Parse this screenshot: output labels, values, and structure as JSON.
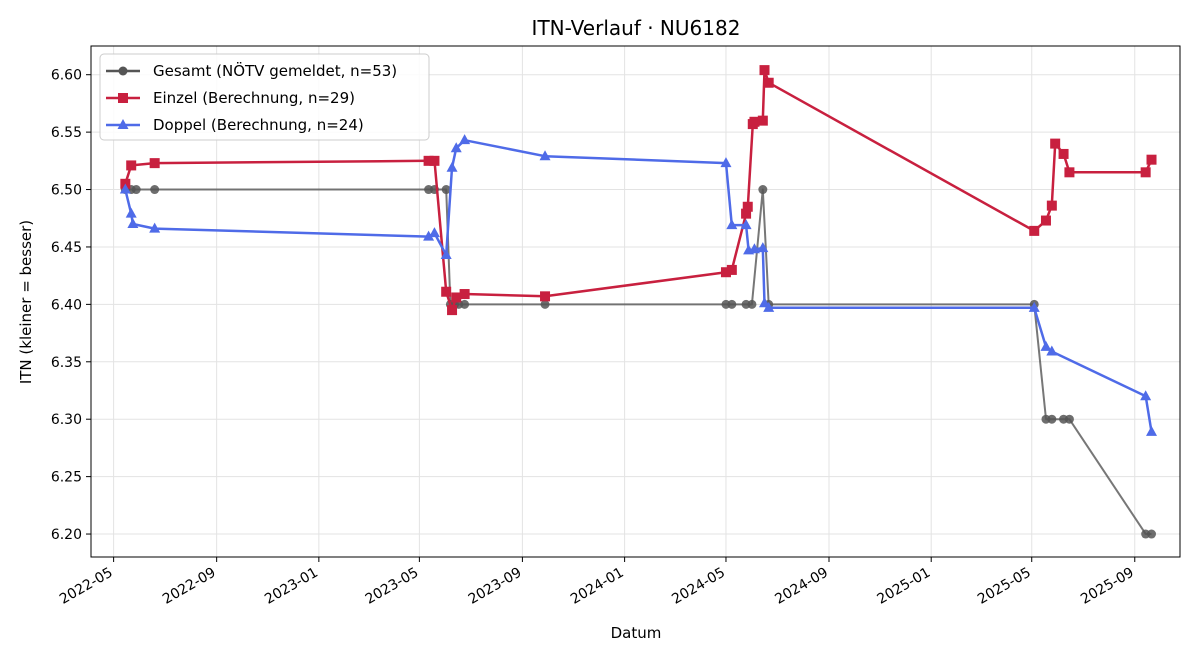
{
  "chart_data": {
    "type": "line",
    "title": "ITN-Verlauf · NU6182",
    "xlabel": "Datum",
    "ylabel": "ITN  (kleiner = besser)",
    "grid": true,
    "legend_position": "top-left",
    "xlim": [
      "2022-04-04",
      "2025-10-25"
    ],
    "ylim": [
      6.18,
      6.625
    ],
    "x_ticks": [
      "2022-05",
      "2022-09",
      "2023-01",
      "2023-05",
      "2023-09",
      "2024-01",
      "2024-05",
      "2024-09",
      "2025-01",
      "2025-05",
      "2025-09"
    ],
    "y_ticks": [
      "6.20",
      "6.25",
      "6.30",
      "6.35",
      "6.40",
      "6.45",
      "6.50",
      "6.55",
      "6.60"
    ],
    "series": [
      {
        "name": "Gesamt (NÖTV gemeldet, n=53)",
        "color": "#555555",
        "marker": "circle",
        "points": [
          [
            "2022-05-15",
            6.5
          ],
          [
            "2022-05-22",
            6.5
          ],
          [
            "2022-05-28",
            6.5
          ],
          [
            "2022-06-19",
            6.5
          ],
          [
            "2023-05-12",
            6.5
          ],
          [
            "2023-05-19",
            6.5
          ],
          [
            "2023-06-02",
            6.5
          ],
          [
            "2023-06-07",
            6.4
          ],
          [
            "2023-06-12",
            6.4
          ],
          [
            "2023-06-17",
            6.4
          ],
          [
            "2023-06-24",
            6.4
          ],
          [
            "2023-09-28",
            6.4
          ],
          [
            "2024-05-01",
            6.4
          ],
          [
            "2024-05-08",
            6.4
          ],
          [
            "2024-05-25",
            6.4
          ],
          [
            "2024-06-01",
            6.4
          ],
          [
            "2024-06-14",
            6.5
          ],
          [
            "2024-06-21",
            6.4
          ],
          [
            "2025-05-04",
            6.4
          ],
          [
            "2025-05-18",
            6.3
          ],
          [
            "2025-05-25",
            6.3
          ],
          [
            "2025-06-08",
            6.3
          ],
          [
            "2025-06-15",
            6.3
          ],
          [
            "2025-09-14",
            6.2
          ],
          [
            "2025-09-21",
            6.2
          ]
        ]
      },
      {
        "name": "Einzel (Berechnung, n=29)",
        "color": "#c8203f",
        "marker": "square",
        "points": [
          [
            "2022-05-15",
            6.505
          ],
          [
            "2022-05-22",
            6.521
          ],
          [
            "2022-06-19",
            6.523
          ],
          [
            "2023-05-12",
            6.525
          ],
          [
            "2023-05-19",
            6.525
          ],
          [
            "2023-06-02",
            6.411
          ],
          [
            "2023-06-09",
            6.395
          ],
          [
            "2023-06-14",
            6.406
          ],
          [
            "2023-06-24",
            6.409
          ],
          [
            "2023-09-28",
            6.407
          ],
          [
            "2024-05-01",
            6.428
          ],
          [
            "2024-05-08",
            6.43
          ],
          [
            "2024-05-25",
            6.479
          ],
          [
            "2024-05-27",
            6.485
          ],
          [
            "2024-06-02",
            6.557
          ],
          [
            "2024-06-04",
            6.559
          ],
          [
            "2024-06-14",
            6.56
          ],
          [
            "2024-06-16",
            6.604
          ],
          [
            "2024-06-21",
            6.593
          ],
          [
            "2025-05-04",
            6.464
          ],
          [
            "2025-05-18",
            6.473
          ],
          [
            "2025-05-25",
            6.486
          ],
          [
            "2025-05-29",
            6.54
          ],
          [
            "2025-06-08",
            6.531
          ],
          [
            "2025-06-15",
            6.515
          ],
          [
            "2025-09-14",
            6.515
          ],
          [
            "2025-09-21",
            6.526
          ]
        ]
      },
      {
        "name": "Doppel (Berechnung, n=24)",
        "color": "#4f6be8",
        "marker": "triangle",
        "points": [
          [
            "2022-05-15",
            6.5
          ],
          [
            "2022-05-22",
            6.479
          ],
          [
            "2022-05-24",
            6.47
          ],
          [
            "2022-06-19",
            6.466
          ],
          [
            "2023-05-12",
            6.459
          ],
          [
            "2023-05-19",
            6.462
          ],
          [
            "2023-06-02",
            6.443
          ],
          [
            "2023-06-09",
            6.519
          ],
          [
            "2023-06-14",
            6.536
          ],
          [
            "2023-06-24",
            6.543
          ],
          [
            "2023-09-28",
            6.529
          ],
          [
            "2024-05-01",
            6.523
          ],
          [
            "2024-05-08",
            6.469
          ],
          [
            "2024-05-25",
            6.469
          ],
          [
            "2024-05-28",
            6.447
          ],
          [
            "2024-06-04",
            6.448
          ],
          [
            "2024-06-14",
            6.449
          ],
          [
            "2024-06-16",
            6.401
          ],
          [
            "2024-06-21",
            6.397
          ],
          [
            "2025-05-04",
            6.397
          ],
          [
            "2025-05-18",
            6.363
          ],
          [
            "2025-05-25",
            6.359
          ],
          [
            "2025-09-14",
            6.32
          ],
          [
            "2025-09-21",
            6.289
          ]
        ]
      }
    ]
  }
}
